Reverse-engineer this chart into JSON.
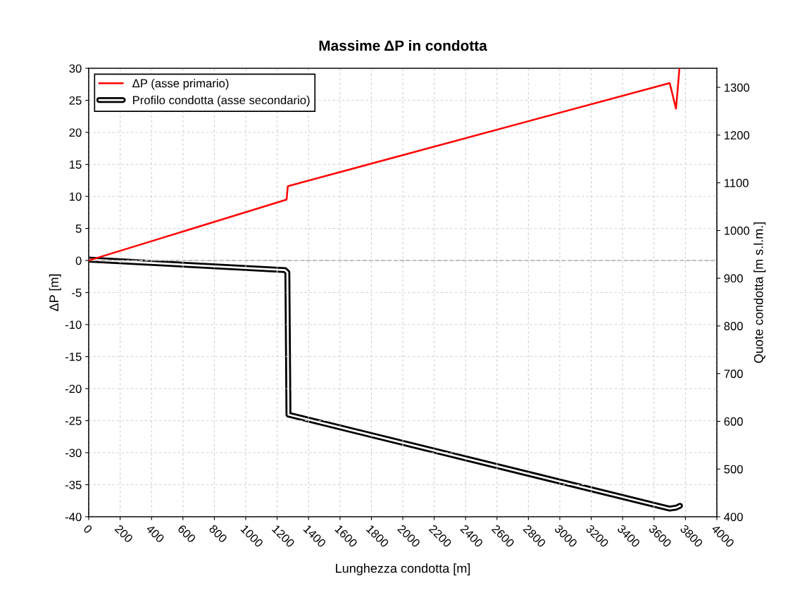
{
  "chart_data": {
    "type": "line",
    "title": "Massime ΔP in condotta",
    "xlabel": "Lunghezza condotta [m]",
    "ylabel": "ΔP [m]",
    "y2label": "Quote condotta [m s.l.m.]",
    "series": [
      {
        "name": "ΔP (asse primario)",
        "color": "#ff0000",
        "x": [
          0,
          1260,
          1268,
          3700,
          3740,
          3762
        ],
        "values": [
          0,
          9.5,
          11.6,
          27.7,
          23.7,
          30
        ]
      },
      {
        "name": "Profilo condotta (asse secondario)",
        "color": "#000000",
        "axis": "y2",
        "x": [
          0,
          1250,
          1265,
          1272,
          3700,
          3740,
          3765
        ],
        "values": [
          939,
          917,
          912,
          614,
          417,
          419,
          423
        ]
      }
    ],
    "xlim": [
      0,
      4000
    ],
    "xticks": [
      0,
      200,
      400,
      600,
      800,
      1000,
      1200,
      1400,
      1600,
      1800,
      2000,
      2200,
      2400,
      2600,
      2800,
      3000,
      3200,
      3400,
      3600,
      3800,
      4000
    ],
    "ylim": [
      -40,
      30
    ],
    "yticks": [
      -40,
      -35,
      -30,
      -25,
      -20,
      -15,
      -10,
      -5,
      0,
      5,
      10,
      15,
      20,
      25,
      30
    ],
    "y2lim": [
      400,
      1340
    ],
    "y2ticks": [
      400,
      500,
      600,
      700,
      800,
      900,
      1000,
      1100,
      1200,
      1300
    ],
    "ref_lines": [
      {
        "axis": "y",
        "value": 0,
        "color": "#a6a6a6",
        "line_style": "dashed"
      }
    ],
    "grid": true,
    "legend": "top left",
    "marker": "none",
    "line_style": "solid"
  }
}
